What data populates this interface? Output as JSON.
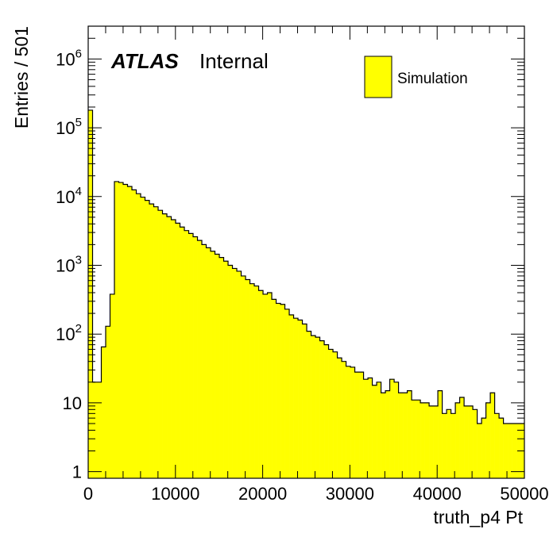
{
  "chart_data": {
    "type": "bar",
    "xlabel": "truth_p4 Pt",
    "ylabel": "Entries / 501",
    "xlim": [
      0,
      50000
    ],
    "ylim": [
      0.8,
      3000000
    ],
    "yscale": "log",
    "grid": false,
    "legend_position": "top-right",
    "fill_color": "#ffff00",
    "line_color": "#000000",
    "x_ticks": [
      {
        "value": 0,
        "label": "0"
      },
      {
        "value": 10000,
        "label": "10000"
      },
      {
        "value": 20000,
        "label": "20000"
      },
      {
        "value": 30000,
        "label": "30000"
      },
      {
        "value": 40000,
        "label": "40000"
      },
      {
        "value": 50000,
        "label": "50000"
      }
    ],
    "y_ticks": [
      {
        "value": 1,
        "base": "1",
        "exp": ""
      },
      {
        "value": 10,
        "base": "10",
        "exp": ""
      },
      {
        "value": 100,
        "base": "10",
        "exp": "2"
      },
      {
        "value": 1000,
        "base": "10",
        "exp": "3"
      },
      {
        "value": 10000,
        "base": "10",
        "exp": "4"
      },
      {
        "value": 100000,
        "base": "10",
        "exp": "5"
      },
      {
        "value": 1000000,
        "base": "10",
        "exp": "6"
      }
    ],
    "label_atlas": "ATLAS",
    "label_internal": "Internal",
    "series": [
      {
        "name": "Simulation",
        "bin_width": 501,
        "values": [
          180000,
          20,
          20,
          65,
          130,
          380,
          16500,
          16000,
          15000,
          14000,
          12500,
          11000,
          9800,
          8800,
          7800,
          7100,
          6300,
          5600,
          5100,
          4600,
          4100,
          3600,
          3200,
          2900,
          2600,
          2300,
          2000,
          1800,
          1600,
          1450,
          1300,
          1150,
          1000,
          900,
          820,
          700,
          620,
          540,
          500,
          430,
          380,
          400,
          320,
          280,
          270,
          230,
          190,
          170,
          160,
          140,
          110,
          95,
          90,
          80,
          70,
          60,
          55,
          45,
          40,
          34,
          33,
          28,
          28,
          22,
          23,
          18,
          20,
          14,
          15,
          22,
          20,
          14,
          14,
          15,
          11,
          11,
          10,
          10,
          9,
          9,
          15,
          7,
          8,
          7,
          10,
          12,
          9,
          9,
          8,
          5,
          6,
          10,
          14,
          7,
          6,
          5,
          5,
          5,
          5,
          5
        ]
      }
    ]
  }
}
